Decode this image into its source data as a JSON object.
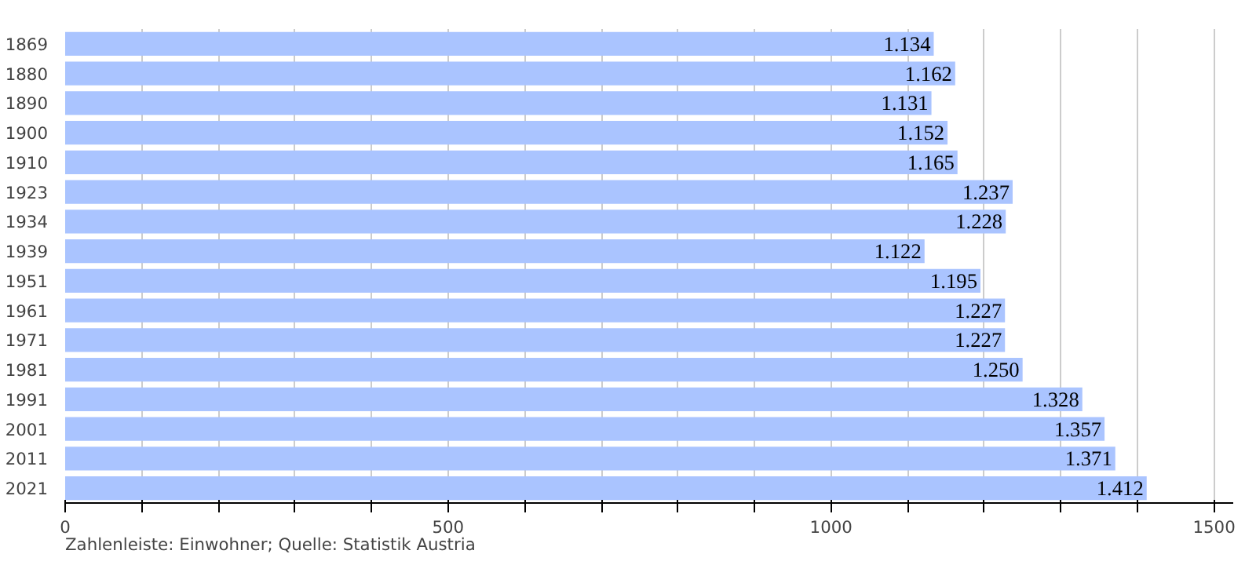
{
  "chart_data": {
    "type": "bar",
    "orientation": "horizontal",
    "categories": [
      "1869",
      "1880",
      "1890",
      "1900",
      "1910",
      "1923",
      "1934",
      "1939",
      "1951",
      "1961",
      "1971",
      "1981",
      "1991",
      "2001",
      "2011",
      "2021"
    ],
    "values": [
      1134,
      1162,
      1131,
      1152,
      1165,
      1237,
      1228,
      1122,
      1195,
      1227,
      1227,
      1250,
      1328,
      1357,
      1371,
      1412
    ],
    "value_labels": [
      "1.134",
      "1.162",
      "1.131",
      "1.152",
      "1.165",
      "1.237",
      "1.228",
      "1.122",
      "1.195",
      "1.227",
      "1.227",
      "1.250",
      "1.328",
      "1.357",
      "1.371",
      "1.412"
    ],
    "color": "#aac4ff",
    "xlim": [
      0,
      1525
    ],
    "xticks": [
      0,
      {
        "value": 100,
        "label": null
      },
      {
        "value": 200,
        "label": null
      },
      {
        "value": 300,
        "label": null
      },
      {
        "value": 400,
        "label": null
      },
      500,
      {
        "value": 600,
        "label": null
      },
      {
        "value": 700,
        "label": null
      },
      {
        "value": 800,
        "label": null
      },
      {
        "value": 900,
        "label": null
      },
      1000,
      {
        "value": 1100,
        "label": null
      },
      {
        "value": 1200,
        "label": null
      },
      {
        "value": 1300,
        "label": null
      },
      {
        "value": 1400,
        "label": null
      },
      1500
    ],
    "grid": "x",
    "annotations": [
      "Zahlenleiste: Einwohner; Quelle: Statistik Austria"
    ]
  }
}
